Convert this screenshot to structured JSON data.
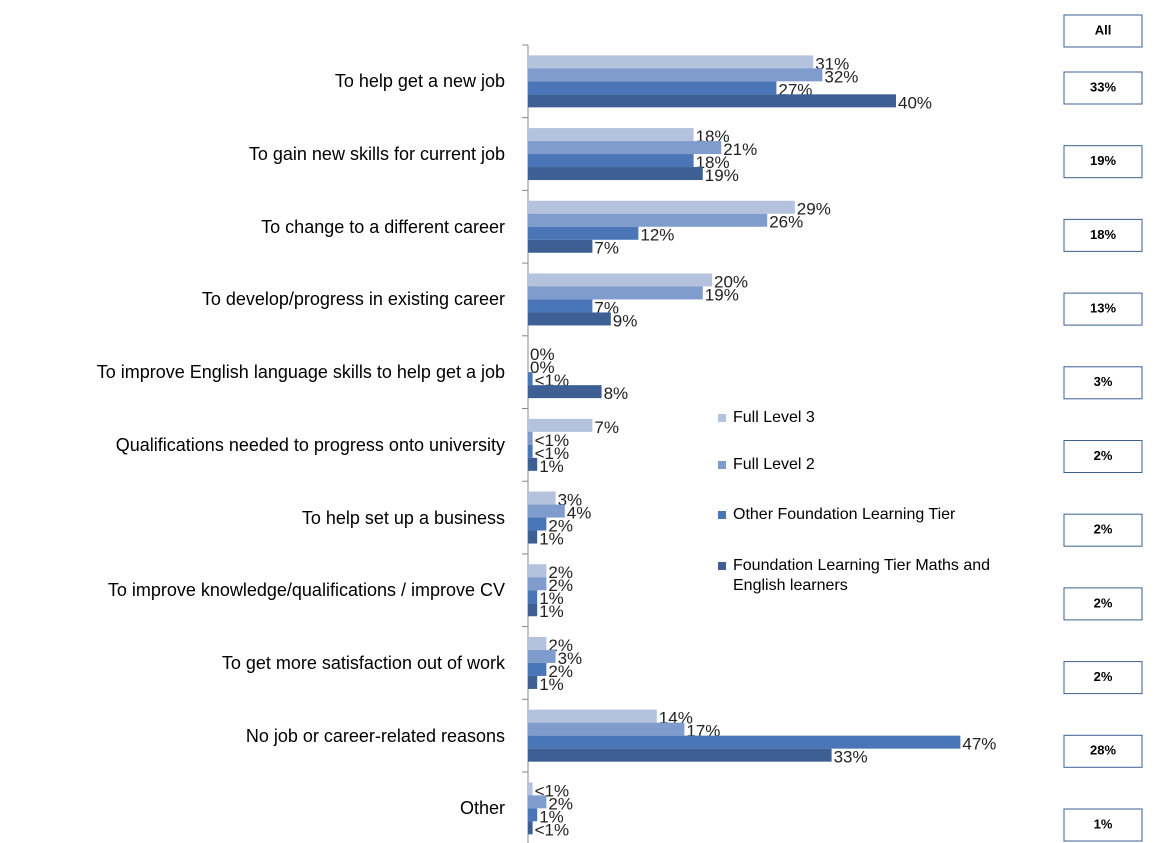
{
  "chart_data": {
    "type": "bar",
    "orientation": "horizontal",
    "categories": [
      "To help get a new job",
      "To gain new skills for current job",
      "To change to a different career",
      "To develop/progress in existing career",
      "To improve English language skills to help get a job",
      "Qualifications needed to progress onto university",
      "To  help set up a business",
      "To improve knowledge/qualifications / improve CV",
      "To get more satisfaction out of work",
      "No job or career-related reasons",
      "Other"
    ],
    "series": [
      {
        "name": "Full Level 3",
        "color": "#b4c2de",
        "values": [
          31,
          18,
          29,
          20,
          0,
          7,
          3,
          2,
          2,
          14,
          0.5
        ],
        "value_labels": [
          "31%",
          "18%",
          "29%",
          "20%",
          "0%",
          "7%",
          "3%",
          "2%",
          "2%",
          "14%",
          "<1%"
        ]
      },
      {
        "name": "Full Level 2",
        "color": "#7f9ccc",
        "values": [
          32,
          21,
          26,
          19,
          0,
          0.5,
          4,
          2,
          3,
          17,
          2
        ],
        "value_labels": [
          "32%",
          "21%",
          "26%",
          "19%",
          "0%",
          "<1%",
          "4%",
          "2%",
          "3%",
          "17%",
          "2%"
        ]
      },
      {
        "name": "Other Foundation Learning Tier",
        "color": "#4a76b8",
        "values": [
          27,
          18,
          12,
          7,
          0.5,
          0.5,
          2,
          1,
          2,
          47,
          1
        ],
        "value_labels": [
          "27%",
          "18%",
          "12%",
          "7%",
          "<1%",
          "<1%",
          "2%",
          "1%",
          "2%",
          "47%",
          "1%"
        ]
      },
      {
        "name": "Foundation Learning Tier Maths and English learners",
        "color": "#3d5f93",
        "values": [
          40,
          19,
          7,
          9,
          8,
          1,
          1,
          1,
          1,
          33,
          0.5
        ],
        "value_labels": [
          "40%",
          "19%",
          "7%",
          "9%",
          "8%",
          "1%",
          "1%",
          "1%",
          "1%",
          "33%",
          "<1%"
        ]
      }
    ],
    "xlim": [
      0,
      50
    ],
    "all": {
      "title": "All",
      "values": [
        33,
        19,
        18,
        13,
        3,
        2,
        2,
        2,
        2,
        28,
        1
      ],
      "value_labels": [
        "33%",
        "19%",
        "18%",
        "13%",
        "3%",
        "2%",
        "2%",
        "2%",
        "2%",
        "28%",
        "1%"
      ]
    }
  }
}
